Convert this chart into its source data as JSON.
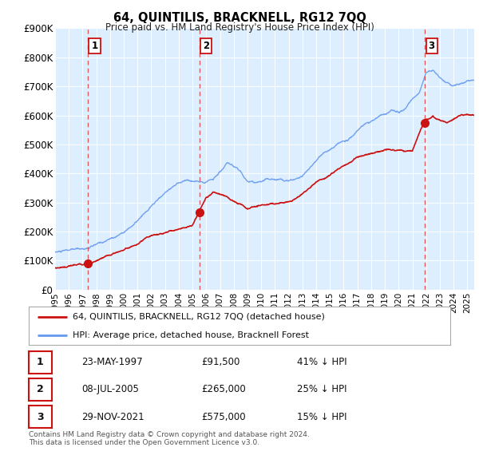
{
  "title": "64, QUINTILIS, BRACKNELL, RG12 7QQ",
  "subtitle": "Price paid vs. HM Land Registry's House Price Index (HPI)",
  "ylim": [
    0,
    900000
  ],
  "yticks": [
    0,
    100000,
    200000,
    300000,
    400000,
    500000,
    600000,
    700000,
    800000,
    900000
  ],
  "ytick_labels": [
    "£0",
    "£100K",
    "£200K",
    "£300K",
    "£400K",
    "£500K",
    "£600K",
    "£700K",
    "£800K",
    "£900K"
  ],
  "hpi_color": "#6699ee",
  "sale_color": "#cc1111",
  "dashed_color": "#dd4444",
  "plot_bg": "#ddeeff",
  "sale_points": [
    {
      "date": 1997.39,
      "price": 91500,
      "label": "1"
    },
    {
      "date": 2005.52,
      "price": 265000,
      "label": "2"
    },
    {
      "date": 2021.91,
      "price": 575000,
      "label": "3"
    }
  ],
  "legend_entries": [
    "64, QUINTILIS, BRACKNELL, RG12 7QQ (detached house)",
    "HPI: Average price, detached house, Bracknell Forest"
  ],
  "table_rows": [
    {
      "num": "1",
      "date": "23-MAY-1997",
      "price": "£91,500",
      "hpi": "41% ↓ HPI"
    },
    {
      "num": "2",
      "date": "08-JUL-2005",
      "price": "£265,000",
      "hpi": "25% ↓ HPI"
    },
    {
      "num": "3",
      "date": "29-NOV-2021",
      "price": "£575,000",
      "hpi": "15% ↓ HPI"
    }
  ],
  "footnote": "Contains HM Land Registry data © Crown copyright and database right 2024.\nThis data is licensed under the Open Government Licence v3.0.",
  "xmin": 1995.0,
  "xmax": 2025.5,
  "hpi_anchors": [
    [
      1995.0,
      130000
    ],
    [
      1996.0,
      133000
    ],
    [
      1997.0,
      135000
    ],
    [
      1997.5,
      140000
    ],
    [
      1998.5,
      155000
    ],
    [
      1999.5,
      175000
    ],
    [
      2000.5,
      210000
    ],
    [
      2001.5,
      250000
    ],
    [
      2002.5,
      295000
    ],
    [
      2003.5,
      340000
    ],
    [
      2004.5,
      365000
    ],
    [
      2005.5,
      358000
    ],
    [
      2006.5,
      375000
    ],
    [
      2007.5,
      425000
    ],
    [
      2008.5,
      390000
    ],
    [
      2009.0,
      360000
    ],
    [
      2009.5,
      355000
    ],
    [
      2010.5,
      370000
    ],
    [
      2011.5,
      375000
    ],
    [
      2012.5,
      385000
    ],
    [
      2013.0,
      400000
    ],
    [
      2013.5,
      430000
    ],
    [
      2014.5,
      480000
    ],
    [
      2015.5,
      510000
    ],
    [
      2016.5,
      540000
    ],
    [
      2017.0,
      560000
    ],
    [
      2017.5,
      580000
    ],
    [
      2018.5,
      600000
    ],
    [
      2019.5,
      620000
    ],
    [
      2020.0,
      610000
    ],
    [
      2020.5,
      625000
    ],
    [
      2021.0,
      650000
    ],
    [
      2021.5,
      680000
    ],
    [
      2022.0,
      750000
    ],
    [
      2022.5,
      760000
    ],
    [
      2023.0,
      740000
    ],
    [
      2023.5,
      720000
    ],
    [
      2024.0,
      710000
    ],
    [
      2024.5,
      715000
    ],
    [
      2025.0,
      720000
    ]
  ],
  "sale_anchors": [
    [
      1995.0,
      75000
    ],
    [
      1997.39,
      91500
    ],
    [
      1998.0,
      100000
    ],
    [
      1999.0,
      115000
    ],
    [
      2000.0,
      135000
    ],
    [
      2001.0,
      155000
    ],
    [
      2002.0,
      175000
    ],
    [
      2003.0,
      185000
    ],
    [
      2004.0,
      200000
    ],
    [
      2005.0,
      215000
    ],
    [
      2005.52,
      265000
    ],
    [
      2006.0,
      310000
    ],
    [
      2006.5,
      330000
    ],
    [
      2007.0,
      320000
    ],
    [
      2007.5,
      310000
    ],
    [
      2008.0,
      295000
    ],
    [
      2008.5,
      285000
    ],
    [
      2009.0,
      270000
    ],
    [
      2009.5,
      280000
    ],
    [
      2010.0,
      285000
    ],
    [
      2011.0,
      295000
    ],
    [
      2012.0,
      305000
    ],
    [
      2013.0,
      330000
    ],
    [
      2014.0,
      370000
    ],
    [
      2015.0,
      390000
    ],
    [
      2016.0,
      420000
    ],
    [
      2017.0,
      450000
    ],
    [
      2018.0,
      470000
    ],
    [
      2019.0,
      475000
    ],
    [
      2020.0,
      470000
    ],
    [
      2021.0,
      470000
    ],
    [
      2021.91,
      575000
    ],
    [
      2022.5,
      590000
    ],
    [
      2023.0,
      580000
    ],
    [
      2023.5,
      570000
    ],
    [
      2024.0,
      580000
    ],
    [
      2024.5,
      595000
    ],
    [
      2025.0,
      600000
    ]
  ]
}
